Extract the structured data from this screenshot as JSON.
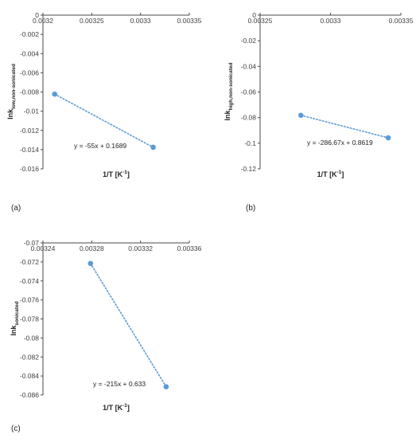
{
  "chart_data": [
    {
      "panel_label": "(a)",
      "type": "scatter",
      "xlabel": "1/T [K",
      "xlabel_sup": "-1",
      "xlabel_end": "]",
      "ylabel": "lnk",
      "ylabel_sub": "low,non-sonicated",
      "xticks": [
        "0.0032",
        "0.00325",
        "0.0033",
        "0.00335"
      ],
      "xlim": [
        0.0032,
        0.00335
      ],
      "yticks": [
        "0",
        "-0.002",
        "-0.004",
        "-0.006",
        "-0.008",
        "-0.01",
        "-0.012",
        "-0.014",
        "-0.016"
      ],
      "ylim": [
        -0.016,
        0
      ],
      "points": [
        {
          "x": 0.003212,
          "y": -0.00822
        },
        {
          "x": 0.003313,
          "y": -0.01376
        }
      ],
      "trendline": "y = -55x + 0.1689",
      "color": "#5b9bd5",
      "grid": false
    },
    {
      "panel_label": "(b)",
      "type": "scatter",
      "xlabel": "1/T [K",
      "xlabel_sup": "-1",
      "xlabel_end": "]",
      "ylabel": "lnk",
      "ylabel_sub": "high,non-sonicated",
      "xticks": [
        "0.00325",
        "0.0033",
        "0.00335"
      ],
      "xlim": [
        0.00325,
        0.00335
      ],
      "yticks": [
        "0",
        "-0.02",
        "-0.04",
        "-0.06",
        "-0.08",
        "-0.1",
        "-0.12"
      ],
      "ylim": [
        -0.12,
        0
      ],
      "points": [
        {
          "x": 0.003279,
          "y": -0.0782
        },
        {
          "x": 0.003341,
          "y": -0.0958
        }
      ],
      "trendline": "y = -286.67x + 0.8619",
      "color": "#5b9bd5",
      "grid": false
    },
    {
      "panel_label": "(c)",
      "type": "scatter",
      "xlabel": "1/T [K",
      "xlabel_sup": "-1",
      "xlabel_end": "]",
      "ylabel": "lnk",
      "ylabel_sub": "sonicated",
      "xticks": [
        "0.00324",
        "0.00328",
        "0.00332",
        "0.00336"
      ],
      "xlim": [
        0.00324,
        0.00336
      ],
      "yticks": [
        "-0.07",
        "-0.072",
        "-0.074",
        "-0.076",
        "-0.078",
        "-0.08",
        "-0.082",
        "-0.084",
        "-0.086"
      ],
      "ylim": [
        -0.086,
        -0.07
      ],
      "points": [
        {
          "x": 0.003279,
          "y": -0.07216
        },
        {
          "x": 0.003341,
          "y": -0.08513
        }
      ],
      "trendline": "y = -215x + 0.633",
      "color": "#5b9bd5",
      "grid": false
    }
  ]
}
